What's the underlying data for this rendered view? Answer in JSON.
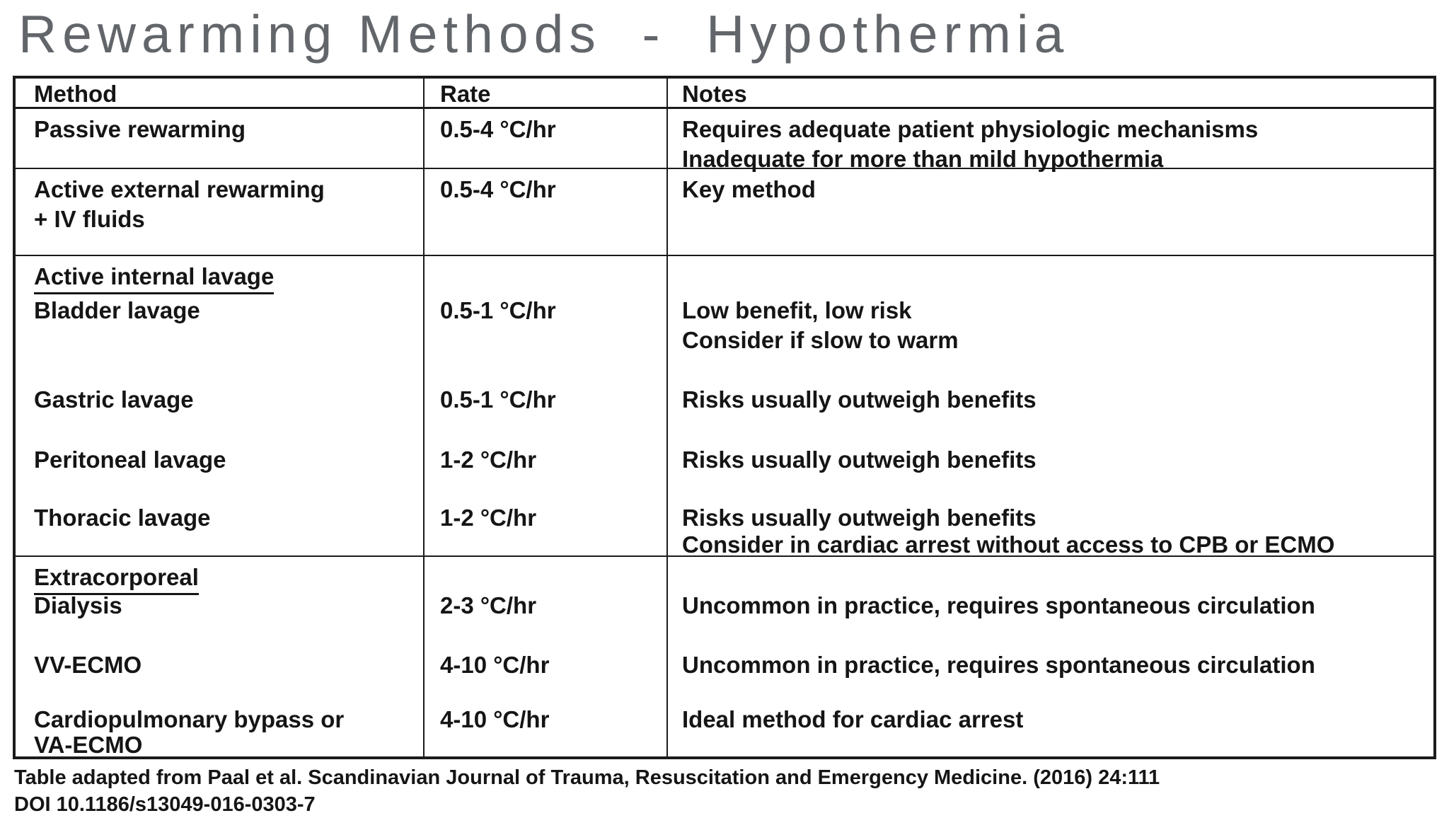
{
  "title": "Rewarming Methods  -  Hypothermia",
  "table": {
    "headers": [
      "Method",
      "Rate",
      "Notes"
    ],
    "rows": [
      {
        "method_lines": [
          "Passive rewarming"
        ],
        "rate": "0.5-4 °C/hr",
        "notes": [
          "Requires adequate patient physiologic mechanisms",
          "Inadequate for more than mild hypothermia"
        ]
      },
      {
        "method_lines": [
          "Active external rewarming",
          "+ IV fluids"
        ],
        "rate": "0.5-4 °C/hr",
        "notes": [
          "Key method"
        ]
      },
      {
        "group_label": "Active internal lavage",
        "items": [
          {
            "method_lines": [
              "Bladder lavage"
            ],
            "rate": "0.5-1 °C/hr",
            "notes": [
              "Low benefit, low risk",
              "Consider if slow to warm"
            ]
          },
          {
            "method_lines": [
              "Gastric lavage"
            ],
            "rate": "0.5-1 °C/hr",
            "notes": [
              "Risks usually outweigh benefits"
            ]
          },
          {
            "method_lines": [
              "Peritoneal lavage"
            ],
            "rate": "1-2 °C/hr",
            "notes": [
              "Risks usually outweigh benefits"
            ]
          },
          {
            "method_lines": [
              "Thoracic lavage"
            ],
            "rate": "1-2 °C/hr",
            "notes": [
              "Risks usually outweigh benefits",
              "Consider in cardiac arrest without access to CPB or ECMO"
            ]
          }
        ]
      },
      {
        "group_label": "Extracorporeal",
        "items": [
          {
            "method_lines": [
              "Dialysis"
            ],
            "rate": "2-3 °C/hr",
            "notes": [
              "Uncommon in practice, requires spontaneous circulation"
            ]
          },
          {
            "method_lines": [
              "VV-ECMO"
            ],
            "rate": "4-10 °C/hr",
            "notes": [
              "Uncommon in practice, requires spontaneous circulation"
            ]
          },
          {
            "method_lines": [
              "Cardiopulmonary bypass or",
              "VA-ECMO"
            ],
            "rate": "4-10 °C/hr",
            "notes": [
              "Ideal method for cardiac arrest"
            ]
          }
        ]
      }
    ]
  },
  "footer": {
    "citation": "Table adapted from Paal et al. Scandinavian Journal of Trauma, Resuscitation and Emergency Medicine. (2016) 24:111",
    "doi": "DOI 10.1186/s13049-016-0303-7"
  },
  "colors": {
    "title_gray": "#62666a",
    "text_black": "#151515",
    "border_black": "#1b1b1b",
    "background": "#ffffff"
  }
}
